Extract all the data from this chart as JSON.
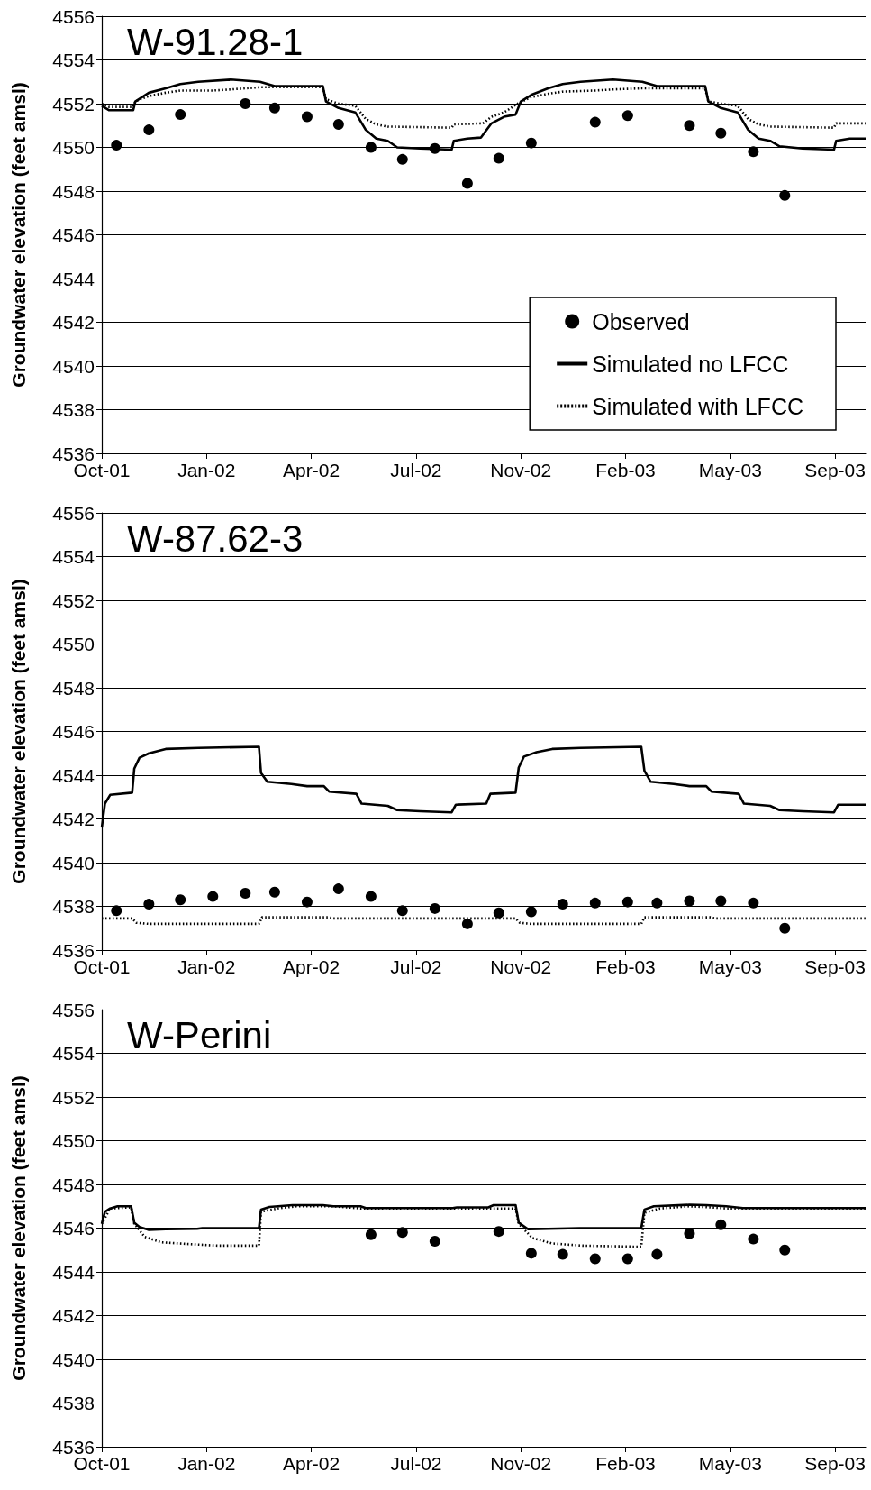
{
  "chart_data": [
    {
      "type": "line",
      "title": "W-91.28-1",
      "ylabel": "Groundwater elevation (feet amsl)",
      "xlim": [
        "2001-10-01",
        "2003-10-01"
      ],
      "xticks": [
        {
          "value": "2001-10-01",
          "label": "Oct-01"
        },
        {
          "value": "2002-01-09",
          "label": "Jan-02"
        },
        {
          "value": "2002-04-19",
          "label": "Apr-02"
        },
        {
          "value": "2002-07-28",
          "label": "Jul-02"
        },
        {
          "value": "2002-11-05",
          "label": "Nov-02"
        },
        {
          "value": "2003-02-13",
          "label": "Feb-03"
        },
        {
          "value": "2003-05-24",
          "label": "May-03"
        },
        {
          "value": "2003-09-01",
          "label": "Sep-03"
        }
      ],
      "ylim": [
        4536,
        4556
      ],
      "yticks": [
        4536,
        4538,
        4540,
        4542,
        4544,
        4546,
        4548,
        4550,
        4552,
        4554,
        4556
      ],
      "grid": "y",
      "legend": "bottom right",
      "series": [
        {
          "name": "Observed",
          "type": "scatter",
          "marker": "circle",
          "color": "#000000",
          "x": [
            "2001-10-15",
            "2001-11-15",
            "2001-12-15",
            "2002-02-15",
            "2002-03-15",
            "2002-04-15",
            "2002-05-15",
            "2002-06-15",
            "2002-07-15",
            "2002-08-15",
            "2002-09-15",
            "2002-10-15",
            "2002-11-15",
            "2003-01-15",
            "2003-02-15",
            "2003-04-15",
            "2003-05-15",
            "2003-06-15",
            "2003-07-15"
          ],
          "values": [
            4550.1,
            4550.8,
            4551.5,
            4552.0,
            4551.8,
            4551.4,
            4551.05,
            4550.0,
            4549.45,
            4549.95,
            4548.35,
            4549.5,
            4550.2,
            4551.15,
            4551.45,
            4551.0,
            4550.65,
            4549.8,
            4547.8
          ]
        },
        {
          "name": "Simulated no LFCC",
          "type": "line",
          "line_style": "solid",
          "color": "#000000",
          "x": [
            "2001-10-01",
            "2001-10-08",
            "2001-10-31",
            "2001-11-02",
            "2001-11-15",
            "2001-12-01",
            "2001-12-15",
            "2002-01-01",
            "2002-02-01",
            "2002-03-01",
            "2002-03-15",
            "2002-04-30",
            "2002-05-03",
            "2002-05-15",
            "2002-05-31",
            "2002-06-10",
            "2002-06-20",
            "2002-07-01",
            "2002-07-10",
            "2002-08-01",
            "2002-08-31",
            "2002-09-02",
            "2002-09-15",
            "2002-09-28",
            "2002-10-08",
            "2002-10-20",
            "2002-10-31",
            "2002-11-05",
            "2002-11-15",
            "2002-12-01",
            "2002-12-15",
            "2003-01-01",
            "2003-02-01",
            "2003-03-01",
            "2003-03-15",
            "2003-04-30",
            "2003-05-03",
            "2003-05-15",
            "2003-05-31",
            "2003-06-10",
            "2003-06-20",
            "2003-07-01",
            "2003-07-10",
            "2003-08-01",
            "2003-08-31",
            "2003-09-02",
            "2003-09-15",
            "2003-10-01"
          ],
          "values": [
            4551.9,
            4551.7,
            4551.7,
            4552.1,
            4552.5,
            4552.7,
            4552.9,
            4553.0,
            4553.1,
            4553.0,
            4552.8,
            4552.8,
            4552.1,
            4551.8,
            4551.6,
            4550.8,
            4550.4,
            4550.3,
            4550.0,
            4549.95,
            4549.9,
            4550.3,
            4550.4,
            4550.45,
            4551.1,
            4551.4,
            4551.5,
            4552.1,
            4552.4,
            4552.7,
            4552.9,
            4553.0,
            4553.1,
            4553.0,
            4552.8,
            4552.8,
            4552.1,
            4551.8,
            4551.6,
            4550.8,
            4550.4,
            4550.3,
            4550.05,
            4549.95,
            4549.9,
            4550.3,
            4550.4,
            4550.4
          ]
        },
        {
          "name": "Simulated with LFCC",
          "type": "line",
          "line_style": "dotted",
          "color": "#000000",
          "x": [
            "2001-10-01",
            "2001-10-08",
            "2001-10-31",
            "2001-11-02",
            "2001-11-15",
            "2001-12-01",
            "2001-12-15",
            "2002-01-15",
            "2002-02-01",
            "2002-03-01",
            "2002-04-30",
            "2002-05-03",
            "2002-05-15",
            "2002-05-31",
            "2002-06-10",
            "2002-06-20",
            "2002-07-01",
            "2002-08-31",
            "2002-09-02",
            "2002-09-30",
            "2002-10-08",
            "2002-10-20",
            "2002-11-02",
            "2002-11-15",
            "2002-12-01",
            "2002-12-15",
            "2003-01-15",
            "2003-02-01",
            "2003-03-01",
            "2003-04-30",
            "2003-05-03",
            "2003-05-15",
            "2003-05-31",
            "2003-06-10",
            "2003-06-20",
            "2003-07-01",
            "2003-08-31",
            "2003-09-02",
            "2003-10-01"
          ],
          "values": [
            4552.0,
            4551.85,
            4551.85,
            4552.1,
            4552.35,
            4552.5,
            4552.6,
            4552.6,
            4552.65,
            4552.75,
            4552.75,
            4552.2,
            4552.0,
            4551.9,
            4551.3,
            4551.05,
            4550.95,
            4550.9,
            4551.05,
            4551.1,
            4551.4,
            4551.6,
            4552.0,
            4552.3,
            4552.45,
            4552.55,
            4552.6,
            4552.65,
            4552.7,
            4552.7,
            4552.1,
            4552.0,
            4551.9,
            4551.3,
            4551.05,
            4550.95,
            4550.9,
            4551.1,
            4551.1
          ]
        }
      ]
    },
    {
      "type": "line",
      "title": "W-87.62-3",
      "ylabel": "Groundwater elevation (feet amsl)",
      "xlim": [
        "2001-10-01",
        "2003-10-01"
      ],
      "xticks": [
        {
          "value": "2001-10-01",
          "label": "Oct-01"
        },
        {
          "value": "2002-01-09",
          "label": "Jan-02"
        },
        {
          "value": "2002-04-19",
          "label": "Apr-02"
        },
        {
          "value": "2002-07-28",
          "label": "Jul-02"
        },
        {
          "value": "2002-11-05",
          "label": "Nov-02"
        },
        {
          "value": "2003-02-13",
          "label": "Feb-03"
        },
        {
          "value": "2003-05-24",
          "label": "May-03"
        },
        {
          "value": "2003-09-01",
          "label": "Sep-03"
        }
      ],
      "ylim": [
        4536,
        4556
      ],
      "yticks": [
        4536,
        4538,
        4540,
        4542,
        4544,
        4546,
        4548,
        4550,
        4552,
        4554,
        4556
      ],
      "grid": "y",
      "series": [
        {
          "type": "scatter",
          "marker": "circle",
          "color": "#000000",
          "x": [
            "2001-10-15",
            "2001-11-15",
            "2001-12-15",
            "2002-01-15",
            "2002-02-15",
            "2002-03-15",
            "2002-04-15",
            "2002-05-15",
            "2002-06-15",
            "2002-07-15",
            "2002-08-15",
            "2002-09-15",
            "2002-10-15",
            "2002-11-15",
            "2002-12-15",
            "2003-01-15",
            "2003-02-15",
            "2003-03-15",
            "2003-04-15",
            "2003-05-15",
            "2003-06-15",
            "2003-07-15"
          ],
          "values": [
            4537.8,
            4538.1,
            4538.3,
            4538.45,
            4538.6,
            4538.65,
            4538.2,
            4538.8,
            4538.45,
            4537.8,
            4537.9,
            4537.2,
            4537.7,
            4537.75,
            4538.1,
            4538.15,
            4538.2,
            4538.15,
            4538.25,
            4538.25,
            4538.15,
            4537.0
          ]
        },
        {
          "type": "line",
          "line_style": "solid",
          "color": "#000000",
          "x": [
            "2001-10-01",
            "2001-10-04",
            "2001-10-09",
            "2001-10-30",
            "2001-11-01",
            "2001-11-06",
            "2001-11-15",
            "2001-12-01",
            "2002-01-01",
            "2002-02-28",
            "2002-03-02",
            "2002-03-08",
            "2002-03-31",
            "2002-04-15",
            "2002-05-01",
            "2002-05-06",
            "2002-06-01",
            "2002-06-06",
            "2002-07-01",
            "2002-07-10",
            "2002-08-01",
            "2002-08-31",
            "2002-09-04",
            "2002-10-03",
            "2002-10-07",
            "2002-10-31",
            "2002-11-03",
            "2002-11-08",
            "2002-11-20",
            "2002-12-05",
            "2003-01-01",
            "2003-02-28",
            "2003-03-03",
            "2003-03-09",
            "2003-03-31",
            "2003-04-15",
            "2003-05-01",
            "2003-05-06",
            "2003-06-01",
            "2003-06-06",
            "2003-07-01",
            "2003-07-10",
            "2003-08-01",
            "2003-08-31",
            "2003-09-04",
            "2003-10-01"
          ],
          "values": [
            4541.6,
            4542.7,
            4543.1,
            4543.2,
            4544.3,
            4544.8,
            4545.0,
            4545.2,
            4545.25,
            4545.3,
            4544.1,
            4543.7,
            4543.6,
            4543.5,
            4543.5,
            4543.25,
            4543.15,
            4542.7,
            4542.6,
            4542.4,
            4542.35,
            4542.3,
            4542.65,
            4542.7,
            4543.15,
            4543.2,
            4544.35,
            4544.85,
            4545.05,
            4545.2,
            4545.25,
            4545.3,
            4544.2,
            4543.7,
            4543.6,
            4543.5,
            4543.5,
            4543.25,
            4543.15,
            4542.7,
            4542.6,
            4542.4,
            4542.35,
            4542.3,
            4542.65,
            4542.65
          ]
        },
        {
          "type": "line",
          "line_style": "dotted",
          "color": "#000000",
          "x": [
            "2001-10-01",
            "2001-10-30",
            "2001-11-03",
            "2001-11-15",
            "2002-02-28",
            "2002-03-03",
            "2002-05-05",
            "2002-05-10",
            "2002-10-31",
            "2002-11-04",
            "2002-11-15",
            "2003-02-28",
            "2003-03-03",
            "2003-05-05",
            "2003-05-10",
            "2003-10-01"
          ],
          "values": [
            4537.45,
            4537.45,
            4537.25,
            4537.2,
            4537.2,
            4537.5,
            4537.5,
            4537.45,
            4537.45,
            4537.25,
            4537.2,
            4537.2,
            4537.5,
            4537.5,
            4537.45,
            4537.45
          ]
        }
      ]
    },
    {
      "type": "line",
      "title": "W-Perini",
      "ylabel": "Groundwater elevation (feet amsl)",
      "xlim": [
        "2001-10-01",
        "2003-10-01"
      ],
      "xticks": [
        {
          "value": "2001-10-01",
          "label": "Oct-01"
        },
        {
          "value": "2002-01-09",
          "label": "Jan-02"
        },
        {
          "value": "2002-04-19",
          "label": "Apr-02"
        },
        {
          "value": "2002-07-28",
          "label": "Jul-02"
        },
        {
          "value": "2002-11-05",
          "label": "Nov-02"
        },
        {
          "value": "2003-02-13",
          "label": "Feb-03"
        },
        {
          "value": "2003-05-24",
          "label": "May-03"
        },
        {
          "value": "2003-09-01",
          "label": "Sep-03"
        }
      ],
      "ylim": [
        4536,
        4556
      ],
      "yticks": [
        4536,
        4538,
        4540,
        4542,
        4544,
        4546,
        4548,
        4550,
        4552,
        4554,
        4556
      ],
      "grid": "y",
      "series": [
        {
          "type": "scatter",
          "marker": "circle",
          "color": "#000000",
          "x": [
            "2002-06-15",
            "2002-07-15",
            "2002-08-15",
            "2002-10-15",
            "2002-11-15",
            "2002-12-15",
            "2003-01-15",
            "2003-02-15",
            "2003-03-15",
            "2003-04-15",
            "2003-05-15",
            "2003-06-15",
            "2003-07-15"
          ],
          "values": [
            4545.7,
            4545.8,
            4545.4,
            4545.85,
            4544.85,
            4544.8,
            4544.6,
            4544.6,
            4544.8,
            4545.75,
            4546.15,
            4545.5,
            4545.0
          ]
        },
        {
          "type": "line",
          "line_style": "solid",
          "color": "#000000",
          "x": [
            "2001-10-01",
            "2001-10-04",
            "2001-10-09",
            "2001-10-16",
            "2001-10-29",
            "2001-11-01",
            "2001-11-06",
            "2001-11-15",
            "2001-12-01",
            "2001-12-31",
            "2002-01-05",
            "2002-02-28",
            "2002-03-02",
            "2002-03-10",
            "2002-04-01",
            "2002-04-30",
            "2002-05-10",
            "2002-06-05",
            "2002-06-10",
            "2002-09-01",
            "2002-09-05",
            "2002-10-05",
            "2002-10-10",
            "2002-10-31",
            "2002-11-03",
            "2002-11-12",
            "2002-12-01",
            "2002-12-31",
            "2003-02-28",
            "2003-03-03",
            "2003-03-12",
            "2003-04-15",
            "2003-05-01",
            "2003-05-20",
            "2003-06-05",
            "2003-10-01"
          ],
          "values": [
            4546.2,
            4546.75,
            4546.9,
            4547.0,
            4547.0,
            4546.25,
            4546.05,
            4545.92,
            4545.95,
            4545.97,
            4546.0,
            4546.0,
            4546.85,
            4546.97,
            4547.05,
            4547.05,
            4547.0,
            4547.0,
            4546.92,
            4546.92,
            4546.95,
            4546.95,
            4547.05,
            4547.05,
            4546.25,
            4545.95,
            4545.97,
            4546.0,
            4546.0,
            4546.85,
            4547.0,
            4547.07,
            4547.05,
            4547.0,
            4546.92,
            4546.92
          ]
        },
        {
          "type": "line",
          "line_style": "dotted",
          "color": "#000000",
          "x": [
            "2001-10-01",
            "2001-10-09",
            "2001-10-29",
            "2001-11-01",
            "2001-11-11",
            "2001-11-27",
            "2001-12-20",
            "2002-01-20",
            "2002-02-28",
            "2002-03-02",
            "2002-03-18",
            "2002-04-05",
            "2002-05-10",
            "2002-06-05",
            "2002-10-31",
            "2002-11-03",
            "2002-11-16",
            "2002-12-05",
            "2003-01-03",
            "2003-02-28",
            "2003-03-03",
            "2003-03-18",
            "2003-04-15",
            "2003-05-05",
            "2003-05-20",
            "2003-10-01"
          ],
          "values": [
            4546.2,
            4546.9,
            4546.95,
            4546.2,
            4545.6,
            4545.35,
            4545.28,
            4545.2,
            4545.2,
            4546.75,
            4546.9,
            4547.0,
            4547.0,
            4546.9,
            4546.9,
            4546.2,
            4545.55,
            4545.3,
            4545.2,
            4545.15,
            4546.7,
            4546.9,
            4547.0,
            4546.95,
            4546.9,
            4546.9
          ]
        }
      ]
    }
  ]
}
